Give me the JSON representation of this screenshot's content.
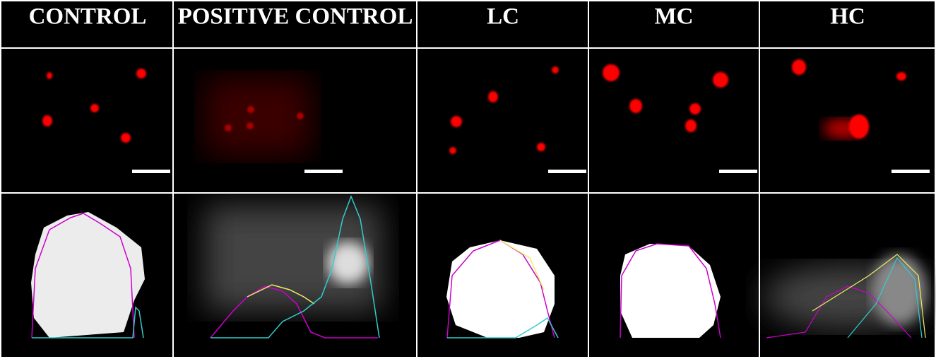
{
  "columns": [
    {
      "label": "CONTROL"
    },
    {
      "label": "POSITIVE CONTROL"
    },
    {
      "label": "LC"
    },
    {
      "label": "MC"
    },
    {
      "label": "HC"
    }
  ]
}
